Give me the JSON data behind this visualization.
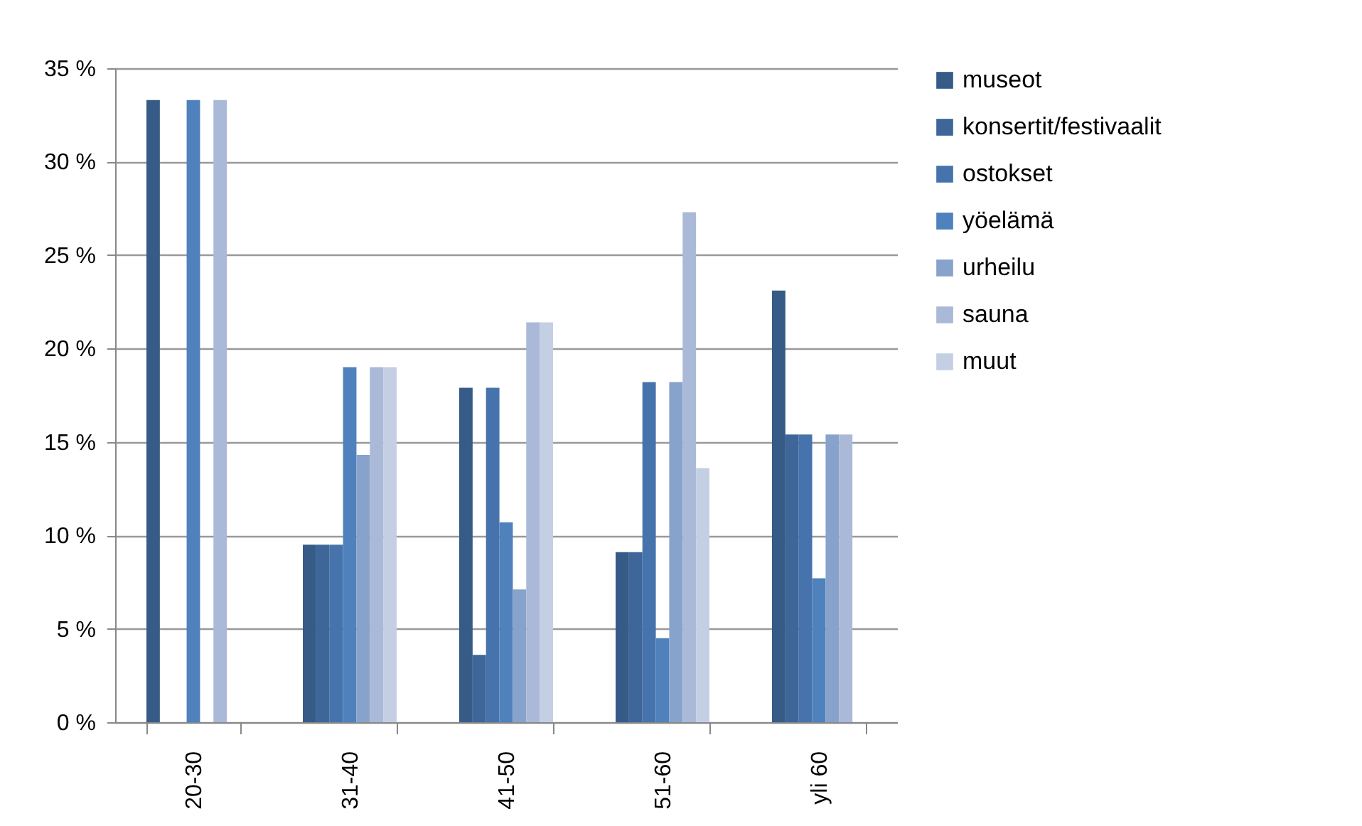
{
  "chart_data": {
    "type": "bar",
    "categories": [
      "20-30",
      "31-40",
      "41-50",
      "51-60",
      "yli 60"
    ],
    "series": [
      {
        "name": "museot",
        "color": "#365b87",
        "values": [
          33.3,
          9.5,
          17.9,
          9.1,
          23.1
        ]
      },
      {
        "name": "konsertit/festivaalit",
        "color": "#3e6699",
        "values": [
          0,
          9.5,
          3.6,
          9.1,
          15.4
        ]
      },
      {
        "name": "ostokset",
        "color": "#4673ab",
        "values": [
          0,
          9.5,
          17.9,
          18.2,
          15.4
        ]
      },
      {
        "name": "yöelämä",
        "color": "#4f81bd",
        "values": [
          33.3,
          19.0,
          10.7,
          4.5,
          7.7
        ]
      },
      {
        "name": "urheilu",
        "color": "#87a2cb",
        "values": [
          0,
          14.3,
          7.1,
          18.2,
          15.4
        ]
      },
      {
        "name": "sauna",
        "color": "#aab9d7",
        "values": [
          33.3,
          19.0,
          21.4,
          27.3,
          15.4
        ]
      },
      {
        "name": "muut",
        "color": "#c5cfe3",
        "values": [
          0,
          19.0,
          21.4,
          13.6,
          0
        ]
      }
    ],
    "ylim": [
      0,
      35
    ],
    "yticks": [
      {
        "value": 0,
        "label": "0 %"
      },
      {
        "value": 5,
        "label": "5 %"
      },
      {
        "value": 10,
        "label": "10 %"
      },
      {
        "value": 15,
        "label": "15 %"
      },
      {
        "value": 20,
        "label": "20 %"
      },
      {
        "value": 25,
        "label": "25 %"
      },
      {
        "value": 30,
        "label": "30 %"
      },
      {
        "value": 35,
        "label": "35 %"
      }
    ],
    "grid": "y",
    "legend": "right"
  }
}
